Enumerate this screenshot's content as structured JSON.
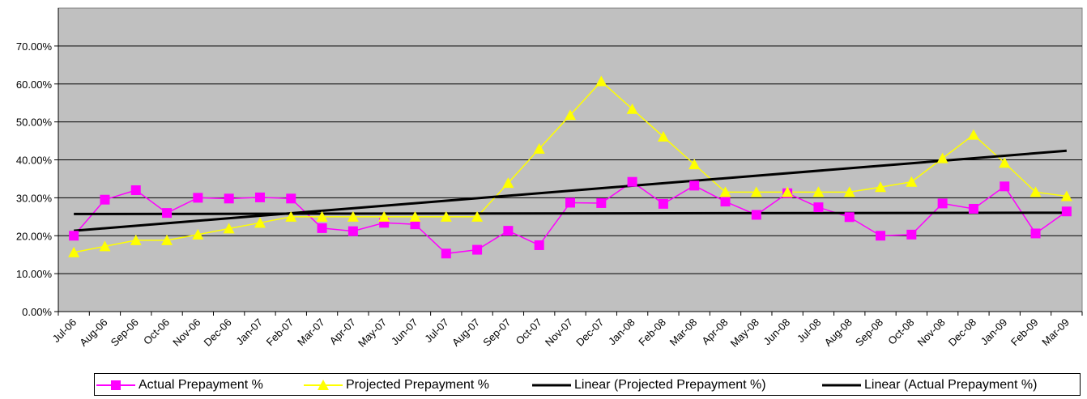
{
  "chart_data": {
    "type": "line",
    "categories": [
      "Jul-06",
      "Aug-06",
      "Sep-06",
      "Oct-06",
      "Nov-06",
      "Dec-06",
      "Jan-07",
      "Feb-07",
      "Mar-07",
      "Apr-07",
      "May-07",
      "Jun-07",
      "Jul-07",
      "Aug-07",
      "Sep-07",
      "Oct-07",
      "Nov-07",
      "Dec-07",
      "Jan-08",
      "Feb-08",
      "Mar-08",
      "Apr-08",
      "May-08",
      "Jun-08",
      "Jul-08",
      "Aug-08",
      "Sep-08",
      "Oct-08",
      "Nov-08",
      "Dec-08",
      "Jan-09",
      "Feb-09",
      "Mar-09"
    ],
    "series": [
      {
        "name": "Actual Prepayment %",
        "color": "#ff00ff",
        "marker": "square",
        "values": [
          20.0,
          29.5,
          32.0,
          26.0,
          30.0,
          29.8,
          30.1,
          29.8,
          22.0,
          21.2,
          23.4,
          23.0,
          15.3,
          16.3,
          21.3,
          17.5,
          28.7,
          28.6,
          34.2,
          28.4,
          33.2,
          29.0,
          25.5,
          31.2,
          27.5,
          24.9,
          20.0,
          20.3,
          28.5,
          27.1,
          33.0,
          20.6,
          26.4
        ]
      },
      {
        "name": "Projected Prepayment %",
        "color": "#ffff00",
        "marker": "triangle",
        "values": [
          15.6,
          17.2,
          18.8,
          18.8,
          20.3,
          21.9,
          23.4,
          25.0,
          25.0,
          25.0,
          25.0,
          25.0,
          25.0,
          25.0,
          33.9,
          42.9,
          51.8,
          60.7,
          53.4,
          46.1,
          38.8,
          31.5,
          31.5,
          31.5,
          31.5,
          31.5,
          32.8,
          34.2,
          40.4,
          46.6,
          39.2,
          31.5,
          30.4
        ]
      },
      {
        "name": "Linear (Projected Prepayment %)",
        "color": "#000000",
        "marker": "none",
        "trend_of": 1
      },
      {
        "name": "Linear (Actual Prepayment %)",
        "color": "#000000",
        "marker": "none",
        "trend_of": 0
      }
    ],
    "y_ticks": [
      "0.00%",
      "10.00%",
      "20.00%",
      "30.00%",
      "40.00%",
      "50.00%",
      "60.00%",
      "70.00%"
    ],
    "ylim": [
      0,
      80
    ],
    "ylabel": "",
    "xlabel": "",
    "title": "",
    "grid": true,
    "plot_background": "#c0c0c0",
    "legend_position": "bottom"
  },
  "legend": {
    "items": [
      {
        "label": "Actual Prepayment %"
      },
      {
        "label": "Projected Prepayment %"
      },
      {
        "label": "Linear (Projected Prepayment %)"
      },
      {
        "label": "Linear (Actual Prepayment %)"
      }
    ]
  }
}
